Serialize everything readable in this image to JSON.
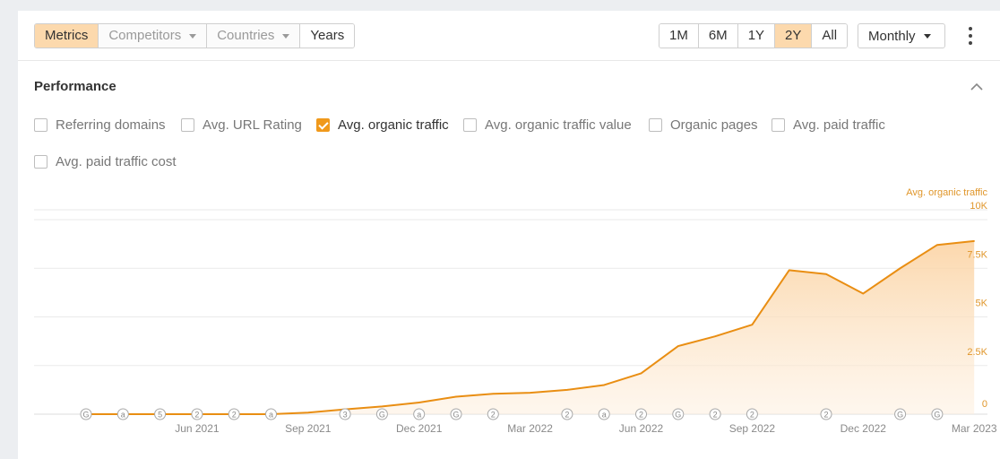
{
  "toolbar": {
    "view_tabs": [
      {
        "label": "Metrics",
        "state": "active"
      },
      {
        "label": "Competitors",
        "state": "disabled"
      },
      {
        "label": "Countries",
        "state": "disabled"
      },
      {
        "label": "Years",
        "state": "normal"
      }
    ],
    "range_tabs": [
      {
        "label": "1M",
        "active": false
      },
      {
        "label": "6M",
        "active": false
      },
      {
        "label": "1Y",
        "active": false
      },
      {
        "label": "2Y",
        "active": true
      },
      {
        "label": "All",
        "active": false
      }
    ],
    "interval": "Monthly"
  },
  "performance": {
    "title": "Performance",
    "metrics": [
      {
        "label": "Referring domains",
        "checked": false
      },
      {
        "label": "Avg. URL Rating",
        "checked": false
      },
      {
        "label": "Avg. organic traffic",
        "checked": true
      },
      {
        "label": "Avg. organic traffic value",
        "checked": false
      },
      {
        "label": "Organic pages",
        "checked": false
      },
      {
        "label": "Avg. paid traffic",
        "checked": false
      },
      {
        "label": "Avg. paid traffic cost",
        "checked": false
      }
    ]
  },
  "colors": {
    "accent": "#f0991b",
    "active_bg": "#fcd9ad"
  },
  "chart_data": {
    "type": "area",
    "series_label": "Avg. organic traffic",
    "y_ticks": [
      "0",
      "2.5K",
      "5K",
      "7.5K",
      "10K"
    ],
    "ylim": [
      0,
      10000
    ],
    "x_ticks": [
      "Jun 2021",
      "Sep 2021",
      "Dec 2021",
      "Mar 2022",
      "Jun 2022",
      "Sep 2022",
      "Dec 2022",
      "Mar 2023"
    ],
    "months": [
      "Mar 2021",
      "Apr 2021",
      "May 2021",
      "Jun 2021",
      "Jul 2021",
      "Aug 2021",
      "Sep 2021",
      "Oct 2021",
      "Nov 2021",
      "Dec 2021",
      "Jan 2022",
      "Feb 2022",
      "Mar 2022",
      "Apr 2022",
      "May 2022",
      "Jun 2022",
      "Jul 2022",
      "Aug 2022",
      "Sep 2022",
      "Oct 2022",
      "Nov 2022",
      "Dec 2022",
      "Jan 2023",
      "Feb 2023",
      "Mar 2023"
    ],
    "values": [
      0,
      0,
      0,
      0,
      0,
      0,
      80,
      250,
      400,
      600,
      900,
      1050,
      1100,
      1250,
      1500,
      2100,
      3500,
      4000,
      4600,
      7400,
      7200,
      6200,
      7500,
      8700,
      8900
    ],
    "grid": true,
    "annotations": [
      {
        "month": 0,
        "text": "G"
      },
      {
        "month": 1,
        "text": "a"
      },
      {
        "month": 2,
        "text": "5"
      },
      {
        "month": 3,
        "text": "2"
      },
      {
        "month": 4,
        "text": "2"
      },
      {
        "month": 5,
        "text": "a"
      },
      {
        "month": 7,
        "text": "3"
      },
      {
        "month": 8,
        "text": "G"
      },
      {
        "month": 9,
        "text": "a"
      },
      {
        "month": 10,
        "text": "G"
      },
      {
        "month": 11,
        "text": "2"
      },
      {
        "month": 13,
        "text": "2"
      },
      {
        "month": 14,
        "text": "a"
      },
      {
        "month": 15,
        "text": "2"
      },
      {
        "month": 16,
        "text": "G"
      },
      {
        "month": 17,
        "text": "2"
      },
      {
        "month": 18,
        "text": "2"
      },
      {
        "month": 20,
        "text": "2"
      },
      {
        "month": 22,
        "text": "G"
      },
      {
        "month": 23,
        "text": "G"
      }
    ]
  }
}
